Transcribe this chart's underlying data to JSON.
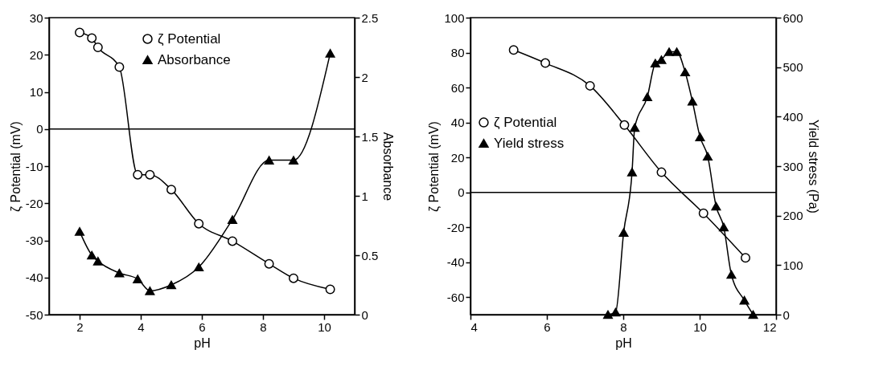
{
  "chart_data": [
    {
      "type": "line",
      "xlabel": "pH",
      "ylabel": "ζ Potential (mV)",
      "y2label": "Absorbance",
      "legend": "top",
      "grid": false,
      "line_style": "solid",
      "xlim": [
        1,
        11
      ],
      "xticks": [
        2,
        4,
        6,
        8,
        10
      ],
      "ylim": [
        -50,
        30
      ],
      "yticks": [
        -50,
        -40,
        -30,
        -20,
        -10,
        0,
        10,
        20,
        30
      ],
      "y2lim": [
        0,
        2.5
      ],
      "y2ticks": [
        0,
        0.5,
        1,
        1.5,
        2,
        2.5
      ],
      "ref_lines": [
        {
          "axis": "y",
          "value": 0,
          "color": "#000000"
        }
      ],
      "series": [
        {
          "name": "ζ Potential",
          "color": "#000000",
          "marker": "circle",
          "x": [
            2,
            2.4,
            2.6,
            3.3,
            3.9,
            4.3,
            5,
            5.9,
            7,
            8.2,
            9,
            10.2
          ],
          "values": [
            26,
            24.5,
            22,
            16.7,
            -12.3,
            -12.3,
            -16.3,
            -25.5,
            -30.2,
            -36.3,
            -40.2,
            -43.2
          ]
        },
        {
          "name": "Absorbance",
          "color": "#000000",
          "marker": "triangle",
          "axis": "y2",
          "x": [
            2,
            2.4,
            2.6,
            3.3,
            3.9,
            4.3,
            5,
            5.9,
            7,
            8.2,
            9,
            10.2
          ],
          "values": [
            0.7,
            0.5,
            0.45,
            0.35,
            0.3,
            0.2,
            0.25,
            0.4,
            0.8,
            1.3,
            1.3,
            2.2
          ]
        }
      ]
    },
    {
      "type": "line",
      "xlabel": "pH",
      "ylabel": "ζ Potential (mV)",
      "y2label": "Yield stress (Pa)",
      "legend": "left",
      "grid": false,
      "line_style": "solid",
      "xlim": [
        4,
        12
      ],
      "xticks": [
        4,
        6,
        8,
        10,
        12
      ],
      "ylim": [
        -70,
        100
      ],
      "yticks": [
        -60,
        -40,
        -20,
        0,
        20,
        40,
        60,
        80,
        100
      ],
      "y2lim": [
        0,
        600
      ],
      "y2ticks": [
        0,
        100,
        200,
        300,
        400,
        500,
        600
      ],
      "ref_lines": [
        {
          "axis": "y",
          "value": 0,
          "color": "#000000"
        }
      ],
      "series": [
        {
          "name": "ζ Potential",
          "color": "#000000",
          "marker": "circle",
          "x": [
            5.13,
            5.96,
            7.13,
            8.03,
            9,
            10.1,
            11.2
          ],
          "values": [
            81.5,
            74,
            61,
            38.5,
            11.5,
            -12,
            -37.5
          ]
        },
        {
          "name": "Yield stress",
          "color": "#000000",
          "marker": "triangle",
          "axis": "y2",
          "x": [
            7.6,
            7.8,
            8.01,
            8.23,
            8.3,
            8.63,
            8.84,
            9,
            9.2,
            9.4,
            9.62,
            9.81,
            10.01,
            10.21,
            10.43,
            10.63,
            10.83,
            11.17,
            11.4
          ],
          "values": [
            0,
            5,
            166,
            288,
            378,
            440,
            508,
            515,
            531,
            531,
            490,
            431,
            359,
            320,
            219,
            177,
            81,
            29,
            0
          ]
        }
      ]
    }
  ]
}
